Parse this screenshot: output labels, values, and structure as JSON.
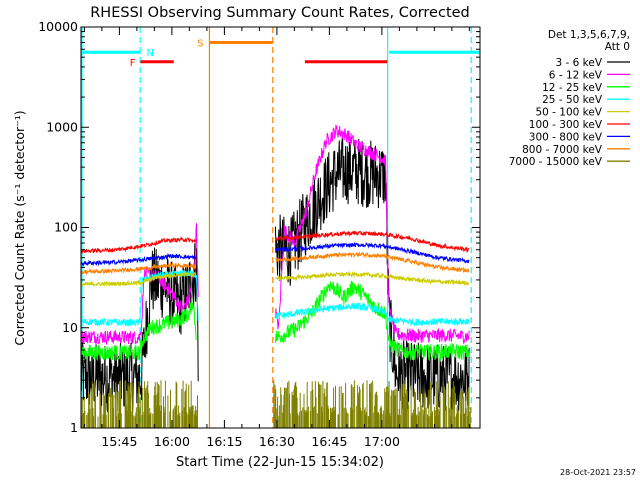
{
  "chart_data": {
    "type": "line",
    "title": "RHESSI Observing Summary Count Rates, Corrected",
    "xlabel": "Start Time (22-Jun-15 15:34:02)",
    "ylabel": "Corrected Count Rate (s⁻¹ detector⁻¹)",
    "y_scale": "log",
    "ylim": [
      1,
      10000
    ],
    "y_ticks": [
      {
        "value": 1,
        "label": "1"
      },
      {
        "value": 10,
        "label": "10"
      },
      {
        "value": 100,
        "label": "100"
      },
      {
        "value": 1000,
        "label": "1000"
      },
      {
        "value": 10000,
        "label": "10000"
      }
    ],
    "x_range_minutes": [
      0,
      114
    ],
    "x_ticks": [
      {
        "minute": 10.97,
        "label": "15:45"
      },
      {
        "minute": 25.97,
        "label": "16:00"
      },
      {
        "minute": 40.97,
        "label": "16:15"
      },
      {
        "minute": 55.97,
        "label": "16:30"
      },
      {
        "minute": 70.97,
        "label": "16:45"
      },
      {
        "minute": 85.97,
        "label": "17:00"
      }
    ],
    "legend_header": [
      "Det 1,3,5,6,7,9,",
      "Att 0"
    ],
    "legend_position": "right",
    "timestamp": "28-Oct-2021 23:57",
    "flags": [
      {
        "label": "N",
        "color": "#00ffff",
        "segments": [
          [
            0,
            17.0
          ],
          [
            88.0,
            114
          ]
        ],
        "level": 5600
      },
      {
        "label": "F",
        "color": "#ff0000",
        "segments": [
          [
            17.0,
            26.5
          ],
          [
            64.0,
            87.5
          ]
        ],
        "level": 4500
      },
      {
        "label": "S",
        "color": "#ff8000",
        "segments": [
          [
            36.7,
            54.8
          ]
        ],
        "level": 7000
      }
    ],
    "boundaries": [
      {
        "minute": 16.9,
        "color": "#00ffff",
        "style": "dashed"
      },
      {
        "minute": 36.7,
        "color": "#ff8000",
        "style": "solid"
      },
      {
        "minute": 54.8,
        "color": "#ff8000",
        "style": "dashed"
      },
      {
        "minute": 87.6,
        "color": "#00ffff",
        "style": "solid"
      },
      {
        "minute": 111.5,
        "color": "#00ffff",
        "style": "dashed"
      },
      {
        "minute": 0.3,
        "color": "#00ffff",
        "style": "solid"
      }
    ],
    "series": [
      {
        "name": "3 - 6 keV",
        "color": "#000000",
        "points": [
          [
            0,
            3.2
          ],
          [
            16.8,
            3.2
          ],
          [
            17.2,
            3.3
          ],
          [
            20,
            30
          ],
          [
            24,
            26
          ],
          [
            28,
            17
          ],
          [
            31,
            26
          ],
          [
            33,
            40
          ],
          [
            33.5,
            5
          ],
          [
            54.9,
            null
          ],
          [
            55.5,
            62
          ],
          [
            60,
            58
          ],
          [
            64,
            110
          ],
          [
            69,
            220
          ],
          [
            73,
            340
          ],
          [
            76,
            380
          ],
          [
            80,
            360
          ],
          [
            83,
            340
          ],
          [
            87,
            330
          ],
          [
            88,
            12
          ],
          [
            90,
            3.5
          ],
          [
            95,
            3.3
          ],
          [
            100,
            3.2
          ],
          [
            105,
            3.2
          ],
          [
            111,
            3.2
          ]
        ],
        "noise": 0.35
      },
      {
        "name": "6 - 12 keV",
        "color": "#ff00ff",
        "points": [
          [
            0,
            8.2
          ],
          [
            16.8,
            8.0
          ],
          [
            17.4,
            12
          ],
          [
            18,
            35
          ],
          [
            22,
            32
          ],
          [
            26,
            22
          ],
          [
            29,
            15
          ],
          [
            31,
            20
          ],
          [
            32.5,
            45
          ],
          [
            33,
            110
          ],
          [
            33.5,
            20
          ],
          [
            54.9,
            null
          ],
          [
            55.5,
            15
          ],
          [
            56.5,
            10
          ],
          [
            58,
            95
          ],
          [
            61,
            70
          ],
          [
            64,
            130
          ],
          [
            67,
            350
          ],
          [
            70,
            720
          ],
          [
            73,
            930
          ],
          [
            76,
            830
          ],
          [
            79,
            660
          ],
          [
            83,
            560
          ],
          [
            87,
            470
          ],
          [
            88,
            15
          ],
          [
            90,
            8.6
          ],
          [
            96,
            8.3
          ],
          [
            104,
            8.4
          ],
          [
            111,
            8.2
          ]
        ],
        "noise": 0.07
      },
      {
        "name": "12 - 25 keV",
        "color": "#00ff00",
        "points": [
          [
            0,
            5.7
          ],
          [
            16.8,
            5.6
          ],
          [
            17.5,
            7.5
          ],
          [
            20,
            10
          ],
          [
            24,
            11
          ],
          [
            28,
            12
          ],
          [
            31,
            14
          ],
          [
            32,
            19
          ],
          [
            33,
            8
          ],
          [
            54.9,
            null
          ],
          [
            55.5,
            8
          ],
          [
            58,
            8.5
          ],
          [
            62,
            10
          ],
          [
            66,
            14
          ],
          [
            69,
            21
          ],
          [
            71,
            27
          ],
          [
            73,
            24
          ],
          [
            75,
            20
          ],
          [
            78,
            26
          ],
          [
            81,
            21
          ],
          [
            84,
            16
          ],
          [
            87,
            14
          ],
          [
            88,
            7
          ],
          [
            91,
            5.9
          ],
          [
            98,
            5.7
          ],
          [
            105,
            5.8
          ],
          [
            111,
            5.7
          ]
        ],
        "noise": 0.08
      },
      {
        "name": "25 - 50 keV",
        "color": "#00ffff",
        "points": [
          [
            0,
            11.5
          ],
          [
            16.8,
            11.2
          ],
          [
            17.5,
            30
          ],
          [
            22,
            33
          ],
          [
            26,
            34
          ],
          [
            30,
            35
          ],
          [
            33,
            34
          ],
          [
            33.5,
            12
          ],
          [
            54.9,
            null
          ],
          [
            55.5,
            13
          ],
          [
            62,
            14
          ],
          [
            70,
            15.5
          ],
          [
            78,
            16.5
          ],
          [
            84,
            15.5
          ],
          [
            87,
            14
          ],
          [
            88,
            12
          ],
          [
            96,
            11.4
          ],
          [
            104,
            11.5
          ],
          [
            111,
            11.6
          ]
        ],
        "noise": 0.035
      },
      {
        "name": "50 - 100 keV",
        "color": "#cccc00",
        "points": [
          [
            0,
            27
          ],
          [
            16.8,
            28
          ],
          [
            22,
            32
          ],
          [
            28,
            34
          ],
          [
            33,
            34
          ],
          [
            54.9,
            null
          ],
          [
            55.5,
            31
          ],
          [
            64,
            32
          ],
          [
            72,
            34
          ],
          [
            80,
            34
          ],
          [
            86,
            33
          ],
          [
            92,
            31
          ],
          [
            100,
            29
          ],
          [
            111,
            28
          ]
        ],
        "noise": 0.02
      },
      {
        "name": "100 - 300 keV",
        "color": "#ff0000",
        "points": [
          [
            0,
            58
          ],
          [
            10,
            60
          ],
          [
            18,
            66
          ],
          [
            24,
            74
          ],
          [
            30,
            76
          ],
          [
            33,
            72
          ],
          [
            54.9,
            null
          ],
          [
            55.5,
            77
          ],
          [
            62,
            80
          ],
          [
            70,
            85
          ],
          [
            78,
            88
          ],
          [
            86,
            86
          ],
          [
            94,
            78
          ],
          [
            102,
            66
          ],
          [
            111,
            60
          ]
        ],
        "noise": 0.02
      },
      {
        "name": "300 - 800 keV",
        "color": "#0000ff",
        "points": [
          [
            0,
            44
          ],
          [
            10,
            45
          ],
          [
            18,
            48
          ],
          [
            26,
            52
          ],
          [
            33,
            50
          ],
          [
            54.9,
            null
          ],
          [
            55.5,
            60
          ],
          [
            64,
            62
          ],
          [
            72,
            66
          ],
          [
            80,
            67
          ],
          [
            86,
            66
          ],
          [
            94,
            58
          ],
          [
            102,
            50
          ],
          [
            111,
            46
          ]
        ],
        "noise": 0.02
      },
      {
        "name": "800 - 7000 keV",
        "color": "#ff8000",
        "points": [
          [
            0,
            36
          ],
          [
            10,
            37
          ],
          [
            18,
            39
          ],
          [
            26,
            42
          ],
          [
            33,
            41
          ],
          [
            54.9,
            null
          ],
          [
            55.5,
            47
          ],
          [
            64,
            50
          ],
          [
            72,
            53
          ],
          [
            80,
            54
          ],
          [
            86,
            52
          ],
          [
            94,
            46
          ],
          [
            102,
            40
          ],
          [
            111,
            37
          ]
        ],
        "noise": 0.02
      },
      {
        "name": "7000 - 15000 keV",
        "color": "#808000",
        "points": [
          [
            0,
            1.4
          ],
          [
            111,
            1.4
          ]
        ],
        "noise": 0,
        "bursty": true
      }
    ]
  }
}
